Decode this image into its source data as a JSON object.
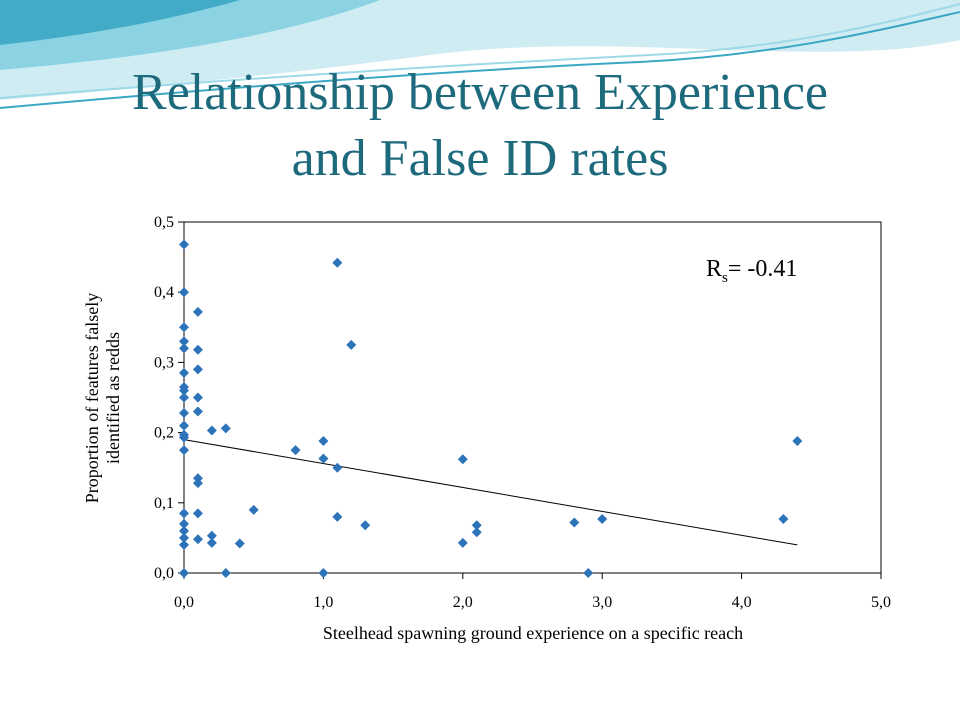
{
  "slide": {
    "title_line1": "Relationship between Experience",
    "title_line2": "and False ID rates"
  },
  "colors": {
    "title": "#1d6a7d",
    "marker": "#2d73b9",
    "wave_light": "#bfe6ee",
    "wave_mid": "#7fcfe0",
    "wave_dark": "#3aa7c4"
  },
  "chart_data": {
    "type": "scatter",
    "xlabel": "Steelhead spawning ground experience on a specific reach",
    "ylabel_lines": [
      "Proportion of features falsely",
      "identified as redds"
    ],
    "xlim": [
      0,
      5
    ],
    "ylim": [
      0,
      0.5
    ],
    "x_ticks": [
      "0,0",
      "1,0",
      "2,0",
      "3,0",
      "4,0",
      "5,0"
    ],
    "y_ticks": [
      "0,0",
      "0,1",
      "0,2",
      "0,3",
      "0,4",
      "0,5"
    ],
    "annotation": {
      "prefix": "R",
      "subscript": "s",
      "text": "= -0.41"
    },
    "trendline": {
      "x": [
        0,
        4.4
      ],
      "y": [
        0.19,
        0.04
      ]
    },
    "points": [
      [
        0,
        0.468
      ],
      [
        0,
        0.4
      ],
      [
        0,
        0.35
      ],
      [
        0,
        0.33
      ],
      [
        0,
        0.32
      ],
      [
        0,
        0.285
      ],
      [
        0,
        0.265
      ],
      [
        0,
        0.26
      ],
      [
        0,
        0.25
      ],
      [
        0,
        0.228
      ],
      [
        0,
        0.21
      ],
      [
        0,
        0.197
      ],
      [
        0,
        0.193
      ],
      [
        0,
        0.175
      ],
      [
        0,
        0.085
      ],
      [
        0,
        0.07
      ],
      [
        0,
        0.06
      ],
      [
        0,
        0.05
      ],
      [
        0,
        0.04
      ],
      [
        0,
        0.0
      ],
      [
        0.1,
        0.372
      ],
      [
        0.1,
        0.318
      ],
      [
        0.1,
        0.29
      ],
      [
        0.1,
        0.25
      ],
      [
        0.1,
        0.23
      ],
      [
        0.1,
        0.135
      ],
      [
        0.1,
        0.128
      ],
      [
        0.1,
        0.085
      ],
      [
        0.1,
        0.048
      ],
      [
        0.2,
        0.203
      ],
      [
        0.2,
        0.053
      ],
      [
        0.2,
        0.043
      ],
      [
        0.3,
        0.206
      ],
      [
        0.3,
        0.0
      ],
      [
        0.4,
        0.042
      ],
      [
        0.5,
        0.09
      ],
      [
        0.8,
        0.175
      ],
      [
        1.0,
        0.188
      ],
      [
        1.0,
        0.163
      ],
      [
        1.0,
        0.0
      ],
      [
        1.1,
        0.442
      ],
      [
        1.1,
        0.15
      ],
      [
        1.1,
        0.08
      ],
      [
        1.2,
        0.325
      ],
      [
        1.3,
        0.068
      ],
      [
        2.0,
        0.162
      ],
      [
        2.0,
        0.043
      ],
      [
        2.1,
        0.068
      ],
      [
        2.1,
        0.058
      ],
      [
        2.8,
        0.072
      ],
      [
        2.9,
        0.0
      ],
      [
        3.0,
        0.077
      ],
      [
        4.3,
        0.077
      ],
      [
        4.4,
        0.188
      ]
    ]
  }
}
